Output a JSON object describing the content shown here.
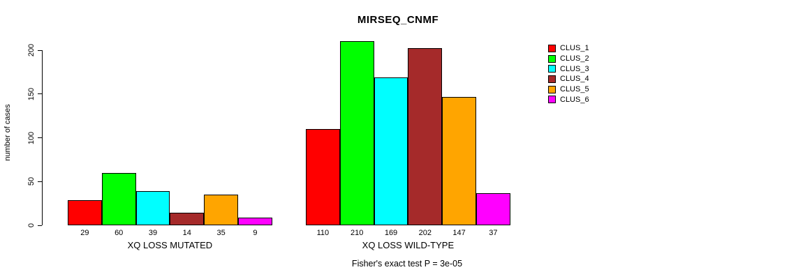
{
  "title": "MIRSEQ_CNMF",
  "chart_data": {
    "type": "bar",
    "title": "MIRSEQ_CNMF",
    "ylabel": "number of cases",
    "xlabel": "",
    "ylim": [
      0,
      200
    ],
    "yticks": [
      0,
      50,
      100,
      150,
      200
    ],
    "grid": false,
    "legend_position": "right",
    "groups": [
      {
        "label": "XQ LOSS MUTATED",
        "values": [
          29,
          60,
          39,
          14,
          35,
          9
        ]
      },
      {
        "label": "XQ LOSS WILD-TYPE",
        "values": [
          110,
          210,
          169,
          202,
          147,
          37
        ]
      }
    ],
    "series_colors": [
      "#FF0000",
      "#00FF00",
      "#00FFFF",
      "#A52A2A",
      "#FFA500",
      "#FF00FF"
    ],
    "legend": [
      {
        "label": "CLUS_1",
        "color": "#FF0000"
      },
      {
        "label": "CLUS_2",
        "color": "#00FF00"
      },
      {
        "label": "CLUS_3",
        "color": "#00FFFF"
      },
      {
        "label": "CLUS_4",
        "color": "#A52A2A"
      },
      {
        "label": "CLUS_5",
        "color": "#FFA500"
      },
      {
        "label": "CLUS_6",
        "color": "#FF00FF"
      }
    ],
    "annotation": "Fisher's exact test P = 3e-05"
  }
}
